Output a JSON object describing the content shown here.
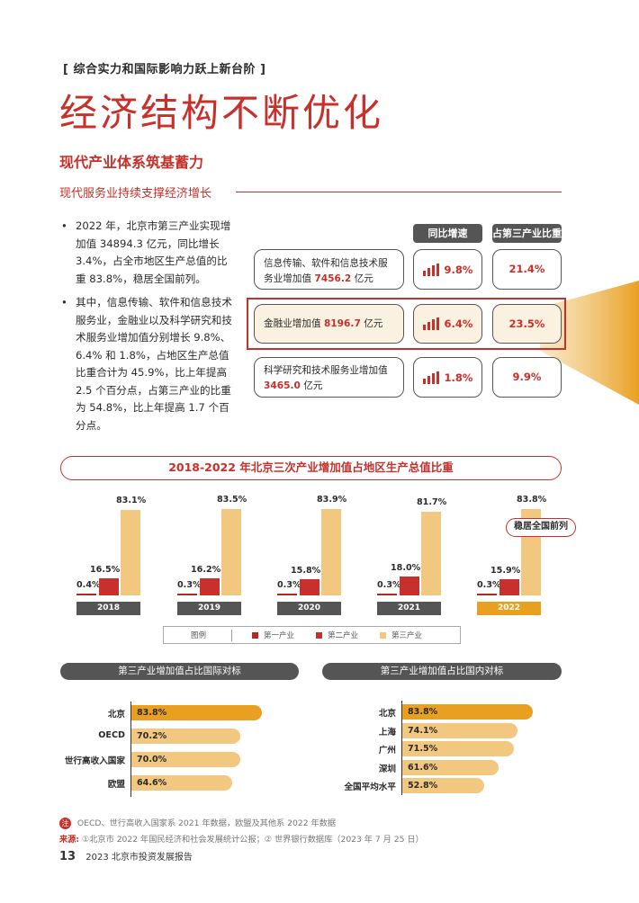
{
  "header": {
    "kicker": "[ 综合实力和国际影响力跃上新台阶 ]",
    "title": "经济结构不断优化",
    "section": "现代产业体系筑基蓄力",
    "subsection": "现代服务业持续支撑经济增长"
  },
  "bullets": [
    "2022 年，北京市第三产业实现增加值 34894.3 亿元，同比增长 3.4%，占全市地区生产总值的比重 83.8%，稳居全国前列。",
    "其中，信息传输、软件和信息技术服务业，金融业以及科学研究和技术服务业增加值分别增长 9.8%、6.4% 和 1.8%，占地区生产总值比重合计为 45.9%，比上年提高 2.5 个百分点，占第三产业的比重为 54.8%，比上年提高 1.7 个百分点。"
  ],
  "table": {
    "col_growth": "同比增速",
    "col_share": "占第三产业比重",
    "rows": [
      {
        "label_a": "信息传输、软件和信息技术服",
        "label_b": "务业增加值 ",
        "value": "7456.2",
        "unit": " 亿元",
        "growth": "9.8%",
        "share": "21.4%"
      },
      {
        "label_a": "金融业增加值 ",
        "label_b": "",
        "value": "8196.7",
        "unit": " 亿元",
        "growth": "6.4%",
        "share": "23.5%"
      },
      {
        "label_a": "科学研究和技术服务业增加值",
        "label_b": "",
        "value": "3465.0",
        "unit": " 亿元",
        "growth": "1.8%",
        "share": "9.9%"
      }
    ]
  },
  "chart_data": [
    {
      "type": "bar",
      "title": "2018-2022 年北京三次产业增加值占地区生产总值比重",
      "categories": [
        "2018",
        "2019",
        "2020",
        "2021",
        "2022"
      ],
      "series": [
        {
          "name": "第一产业",
          "values": [
            0.4,
            0.3,
            0.3,
            0.3,
            0.3
          ],
          "labels": [
            "0.4%",
            "0.3%",
            "0.3%",
            "0.3%",
            "0.3%"
          ]
        },
        {
          "name": "第二产业",
          "values": [
            16.5,
            16.2,
            15.8,
            18.0,
            15.9
          ],
          "labels": [
            "16.5%",
            "16.2%",
            "15.8%",
            "18.0%",
            "15.9%"
          ]
        },
        {
          "name": "第三产业",
          "values": [
            83.1,
            83.5,
            83.9,
            81.7,
            83.8
          ],
          "labels": [
            "83.1%",
            "83.5%",
            "83.9%",
            "81.7%",
            "83.8%"
          ]
        }
      ],
      "annotation": "稳居全国前列",
      "legend_title": "图例",
      "legend_position": "bottom",
      "ylim": [
        0,
        100
      ]
    },
    {
      "type": "bar",
      "orientation": "horizontal",
      "title": "第三产业增加值占比国际对标",
      "categories": [
        "北京",
        "OECD",
        "世行高收入国家",
        "欧盟"
      ],
      "values": [
        83.8,
        70.2,
        70.0,
        64.6
      ],
      "labels": [
        "83.8%",
        "70.2%",
        "70.0%",
        "64.6%"
      ]
    },
    {
      "type": "bar",
      "orientation": "horizontal",
      "title": "第三产业增加值占比国内对标",
      "categories": [
        "北京",
        "上海",
        "广州",
        "深圳",
        "全国平均水平"
      ],
      "values": [
        83.8,
        74.1,
        71.5,
        61.6,
        52.8
      ],
      "labels": [
        "83.8%",
        "74.1%",
        "71.5%",
        "61.6%",
        "52.8%"
      ]
    }
  ],
  "colors": {
    "primary": "#ad2a27",
    "secondary": "#c8302b",
    "tertiary": "#f2c77f",
    "highlight": "#e9a020",
    "dark": "#555555"
  },
  "notes": {
    "note_icon": "注",
    "note_text": "OECD、世行高收入国家系 2021 年数据，欧盟及其他系 2022 年数据",
    "source_label": "来源:",
    "source_text": "①北京市 2022 年国民经济和社会发展统计公报；② 世界银行数据库（2023 年 7 月 25 日）"
  },
  "footer": {
    "page": "13",
    "report": "2023 北京市投资发展报告"
  }
}
